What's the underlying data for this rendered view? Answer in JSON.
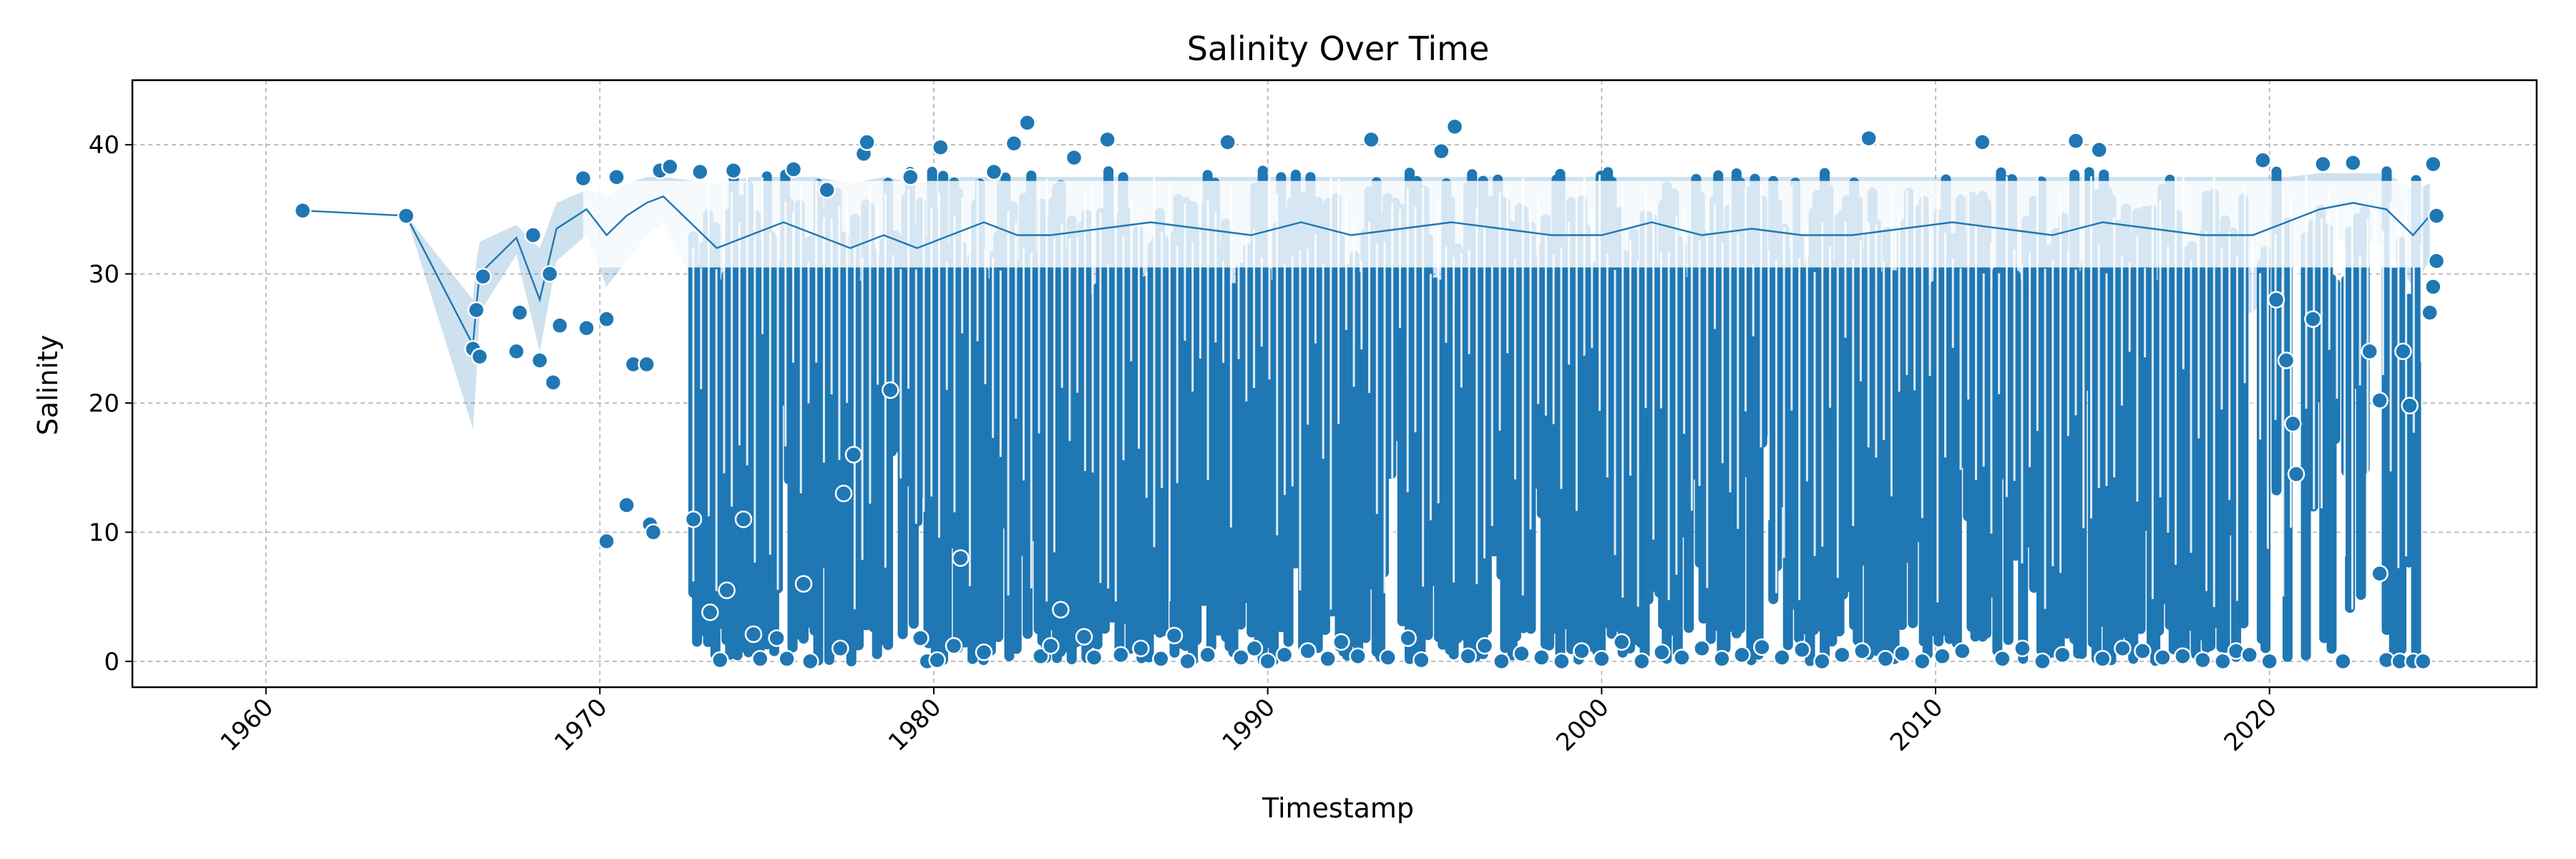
{
  "chart_data": {
    "type": "line",
    "title": "Salinity Over Time",
    "xlabel": "Timestamp",
    "ylabel": "Salinity",
    "xlim": [
      1956.0,
      2028.0
    ],
    "ylim": [
      -2.0,
      45.0
    ],
    "xticks": [
      1960,
      1970,
      1980,
      1990,
      2000,
      2010,
      2020
    ],
    "xtick_labels": [
      "1960",
      "1970",
      "1980",
      "1990",
      "2000",
      "2010",
      "2020"
    ],
    "yticks": [
      0,
      10,
      20,
      30,
      40
    ],
    "ytick_labels": [
      "0",
      "10",
      "20",
      "30",
      "40"
    ],
    "grid": true,
    "grid_style": "dashed",
    "xtick_rotation": 45,
    "colors": {
      "line": "#1f77b4",
      "marker_edge": "#ffffff",
      "band": "#1f77b4",
      "grid": "#b0b0b0"
    },
    "series": [
      {
        "x": [
          1961.1,
          1964.2,
          1966.2,
          1966.3,
          1966.4,
          1967.5,
          1968.2,
          1968.7,
          1969.6,
          1970.2,
          1970.8,
          1971.4,
          1971.9,
          1973.5,
          1974.5,
          1975.5,
          1976.5,
          1977.5,
          1978.5,
          1979.5,
          1980.5,
          1981.5,
          1982.5,
          1983.5,
          1985.0,
          1986.5,
          1988.0,
          1989.5,
          1991.0,
          1992.5,
          1994.0,
          1995.5,
          1997.0,
          1998.5,
          2000.0,
          2001.5,
          2003.0,
          2004.5,
          2006.0,
          2007.5,
          2009.0,
          2010.5,
          2012.0,
          2013.5,
          2015.0,
          2016.5,
          2018.0,
          2019.5,
          2020.5,
          2021.5,
          2022.5,
          2023.5,
          2024.3,
          2024.8
        ],
        "y": [
          34.9,
          34.5,
          24.5,
          27.5,
          30.0,
          32.8,
          28.0,
          33.5,
          35.0,
          33.0,
          34.5,
          35.5,
          36.0,
          32.0,
          33.0,
          34.0,
          33.0,
          32.0,
          33.0,
          32.0,
          33.0,
          34.0,
          33.0,
          33.0,
          33.5,
          34.0,
          33.5,
          33.0,
          34.0,
          33.0,
          33.5,
          34.0,
          33.5,
          33.0,
          33.0,
          34.0,
          33.0,
          33.5,
          33.0,
          33.0,
          33.5,
          34.0,
          33.5,
          33.0,
          34.0,
          33.5,
          33.0,
          33.0,
          34.0,
          35.0,
          35.5,
          35.0,
          33.0,
          34.5
        ],
        "band_lower": [
          34.9,
          34.5,
          18.0,
          22.0,
          27.0,
          31.5,
          24.0,
          31.0,
          33.0,
          29.0,
          31.0,
          33.0,
          34.0,
          26.0,
          27.0,
          28.0,
          27.0,
          26.0,
          27.0,
          26.0,
          27.0,
          28.0,
          27.0,
          27.0,
          28.0,
          28.0,
          28.0,
          27.0,
          28.0,
          27.0,
          28.0,
          28.0,
          28.0,
          27.0,
          27.0,
          28.0,
          27.0,
          28.0,
          27.0,
          27.0,
          28.0,
          28.0,
          28.0,
          27.0,
          28.0,
          28.0,
          27.0,
          27.0,
          30.0,
          32.0,
          33.0,
          32.0,
          29.0,
          31.0
        ],
        "band_upper": [
          34.9,
          34.5,
          28.0,
          31.0,
          32.5,
          33.8,
          32.0,
          35.5,
          36.5,
          36.0,
          37.0,
          37.5,
          37.5,
          37.0,
          37.5,
          37.5,
          37.5,
          37.0,
          37.5,
          37.0,
          37.5,
          37.5,
          37.5,
          37.5,
          37.5,
          37.5,
          37.5,
          37.5,
          37.5,
          37.5,
          37.5,
          37.5,
          37.5,
          37.5,
          37.5,
          37.5,
          37.5,
          37.5,
          37.5,
          37.5,
          37.5,
          37.5,
          37.5,
          37.5,
          37.5,
          37.5,
          37.5,
          37.5,
          37.5,
          37.8,
          37.8,
          37.8,
          36.5,
          37.0
        ],
        "points": [
          [
            1961.1,
            34.9
          ],
          [
            1964.2,
            34.5
          ],
          [
            1966.2,
            24.2
          ],
          [
            1966.3,
            27.2
          ],
          [
            1966.4,
            23.6
          ],
          [
            1966.5,
            29.8
          ],
          [
            1967.5,
            24.0
          ],
          [
            1967.6,
            27.0
          ],
          [
            1968.0,
            33.0
          ],
          [
            1968.2,
            23.3
          ],
          [
            1968.5,
            30.0
          ],
          [
            1968.6,
            21.6
          ],
          [
            1968.8,
            26.0
          ],
          [
            1969.5,
            37.4
          ],
          [
            1969.6,
            25.8
          ],
          [
            1970.2,
            9.3
          ],
          [
            1970.2,
            26.5
          ],
          [
            1970.5,
            37.5
          ],
          [
            1970.8,
            12.1
          ],
          [
            1971.0,
            23.0
          ],
          [
            1971.4,
            23.0
          ],
          [
            1971.5,
            10.6
          ],
          [
            1971.6,
            10.0
          ],
          [
            1971.8,
            38.0
          ],
          [
            1972.1,
            38.3
          ],
          [
            1972.8,
            11.0
          ],
          [
            1973.0,
            37.9
          ],
          [
            1973.3,
            3.8
          ],
          [
            1973.6,
            0.1
          ],
          [
            1973.8,
            5.5
          ],
          [
            1974.0,
            38.0
          ],
          [
            1974.3,
            11.0
          ],
          [
            1974.6,
            2.1
          ],
          [
            1974.8,
            0.2
          ],
          [
            1975.3,
            1.8
          ],
          [
            1975.6,
            0.2
          ],
          [
            1975.8,
            38.1
          ],
          [
            1976.1,
            6.0
          ],
          [
            1976.3,
            0.0
          ],
          [
            1976.8,
            36.5
          ],
          [
            1977.2,
            1.0
          ],
          [
            1977.3,
            13.0
          ],
          [
            1977.6,
            16.0
          ],
          [
            1977.9,
            39.3
          ],
          [
            1978.0,
            40.2
          ],
          [
            1978.7,
            21.0
          ],
          [
            1979.3,
            37.5
          ],
          [
            1979.6,
            1.8
          ],
          [
            1979.8,
            0.0
          ],
          [
            1980.1,
            0.1
          ],
          [
            1980.2,
            39.8
          ],
          [
            1980.6,
            1.2
          ],
          [
            1980.8,
            8.0
          ],
          [
            1981.5,
            0.7
          ],
          [
            1981.8,
            37.9
          ],
          [
            1982.4,
            40.1
          ],
          [
            1982.8,
            41.7
          ],
          [
            1983.2,
            0.4
          ],
          [
            1983.5,
            1.2
          ],
          [
            1983.8,
            4.0
          ],
          [
            1984.2,
            39.0
          ],
          [
            1984.5,
            1.9
          ],
          [
            1984.8,
            0.3
          ],
          [
            1985.2,
            40.4
          ],
          [
            1985.6,
            0.5
          ],
          [
            1986.2,
            1.0
          ],
          [
            1986.8,
            0.2
          ],
          [
            1987.2,
            2.0
          ],
          [
            1987.6,
            0.0
          ],
          [
            1988.2,
            0.5
          ],
          [
            1988.8,
            40.2
          ],
          [
            1989.2,
            0.3
          ],
          [
            1989.6,
            1.0
          ],
          [
            1990.0,
            0.0
          ],
          [
            1990.5,
            0.5
          ],
          [
            1991.2,
            0.8
          ],
          [
            1991.8,
            0.2
          ],
          [
            1992.2,
            1.5
          ],
          [
            1992.7,
            0.4
          ],
          [
            1993.1,
            40.4
          ],
          [
            1993.6,
            0.3
          ],
          [
            1994.2,
            1.8
          ],
          [
            1994.6,
            0.1
          ],
          [
            1995.2,
            39.5
          ],
          [
            1995.6,
            41.4
          ],
          [
            1996.0,
            0.4
          ],
          [
            1996.5,
            1.2
          ],
          [
            1997.0,
            0.0
          ],
          [
            1997.6,
            0.6
          ],
          [
            1998.2,
            0.3
          ],
          [
            1998.8,
            0.0
          ],
          [
            1999.4,
            0.8
          ],
          [
            2000.0,
            0.2
          ],
          [
            2000.6,
            1.5
          ],
          [
            2001.2,
            0.0
          ],
          [
            2001.8,
            0.7
          ],
          [
            2002.4,
            0.3
          ],
          [
            2003.0,
            1.0
          ],
          [
            2003.6,
            0.2
          ],
          [
            2004.2,
            0.5
          ],
          [
            2004.8,
            1.1
          ],
          [
            2005.4,
            0.3
          ],
          [
            2006.0,
            0.9
          ],
          [
            2006.6,
            0.0
          ],
          [
            2007.2,
            0.5
          ],
          [
            2007.8,
            0.8
          ],
          [
            2008.0,
            40.5
          ],
          [
            2008.5,
            0.2
          ],
          [
            2009.0,
            0.6
          ],
          [
            2009.6,
            0.0
          ],
          [
            2010.2,
            0.4
          ],
          [
            2010.8,
            0.8
          ],
          [
            2011.4,
            40.2
          ],
          [
            2012.0,
            0.2
          ],
          [
            2012.6,
            1.0
          ],
          [
            2013.2,
            0.0
          ],
          [
            2013.8,
            0.5
          ],
          [
            2014.2,
            40.3
          ],
          [
            2014.9,
            39.6
          ],
          [
            2015.0,
            0.2
          ],
          [
            2015.6,
            1.0
          ],
          [
            2016.2,
            0.8
          ],
          [
            2016.8,
            0.3
          ],
          [
            2017.4,
            0.4
          ],
          [
            2018.0,
            0.1
          ],
          [
            2018.6,
            0.0
          ],
          [
            2019.0,
            0.8
          ],
          [
            2019.4,
            0.5
          ],
          [
            2019.8,
            38.8
          ],
          [
            2020.0,
            0.0
          ],
          [
            2020.2,
            28.0
          ],
          [
            2020.5,
            23.3
          ],
          [
            2020.7,
            18.4
          ],
          [
            2020.8,
            14.5
          ],
          [
            2021.3,
            26.5
          ],
          [
            2021.6,
            38.5
          ],
          [
            2022.2,
            0.0
          ],
          [
            2022.5,
            38.6
          ],
          [
            2023.0,
            24.0
          ],
          [
            2023.3,
            6.8
          ],
          [
            2023.3,
            20.2
          ],
          [
            2023.5,
            0.1
          ],
          [
            2023.9,
            0.0
          ],
          [
            2024.0,
            24.0
          ],
          [
            2024.2,
            19.8
          ],
          [
            2024.3,
            0.0
          ],
          [
            2024.6,
            0.0
          ],
          [
            2024.8,
            27.0
          ],
          [
            2024.9,
            29.0
          ],
          [
            2025.0,
            34.5
          ],
          [
            2025.0,
            31.0
          ],
          [
            2024.9,
            38.5
          ]
        ]
      }
    ]
  }
}
